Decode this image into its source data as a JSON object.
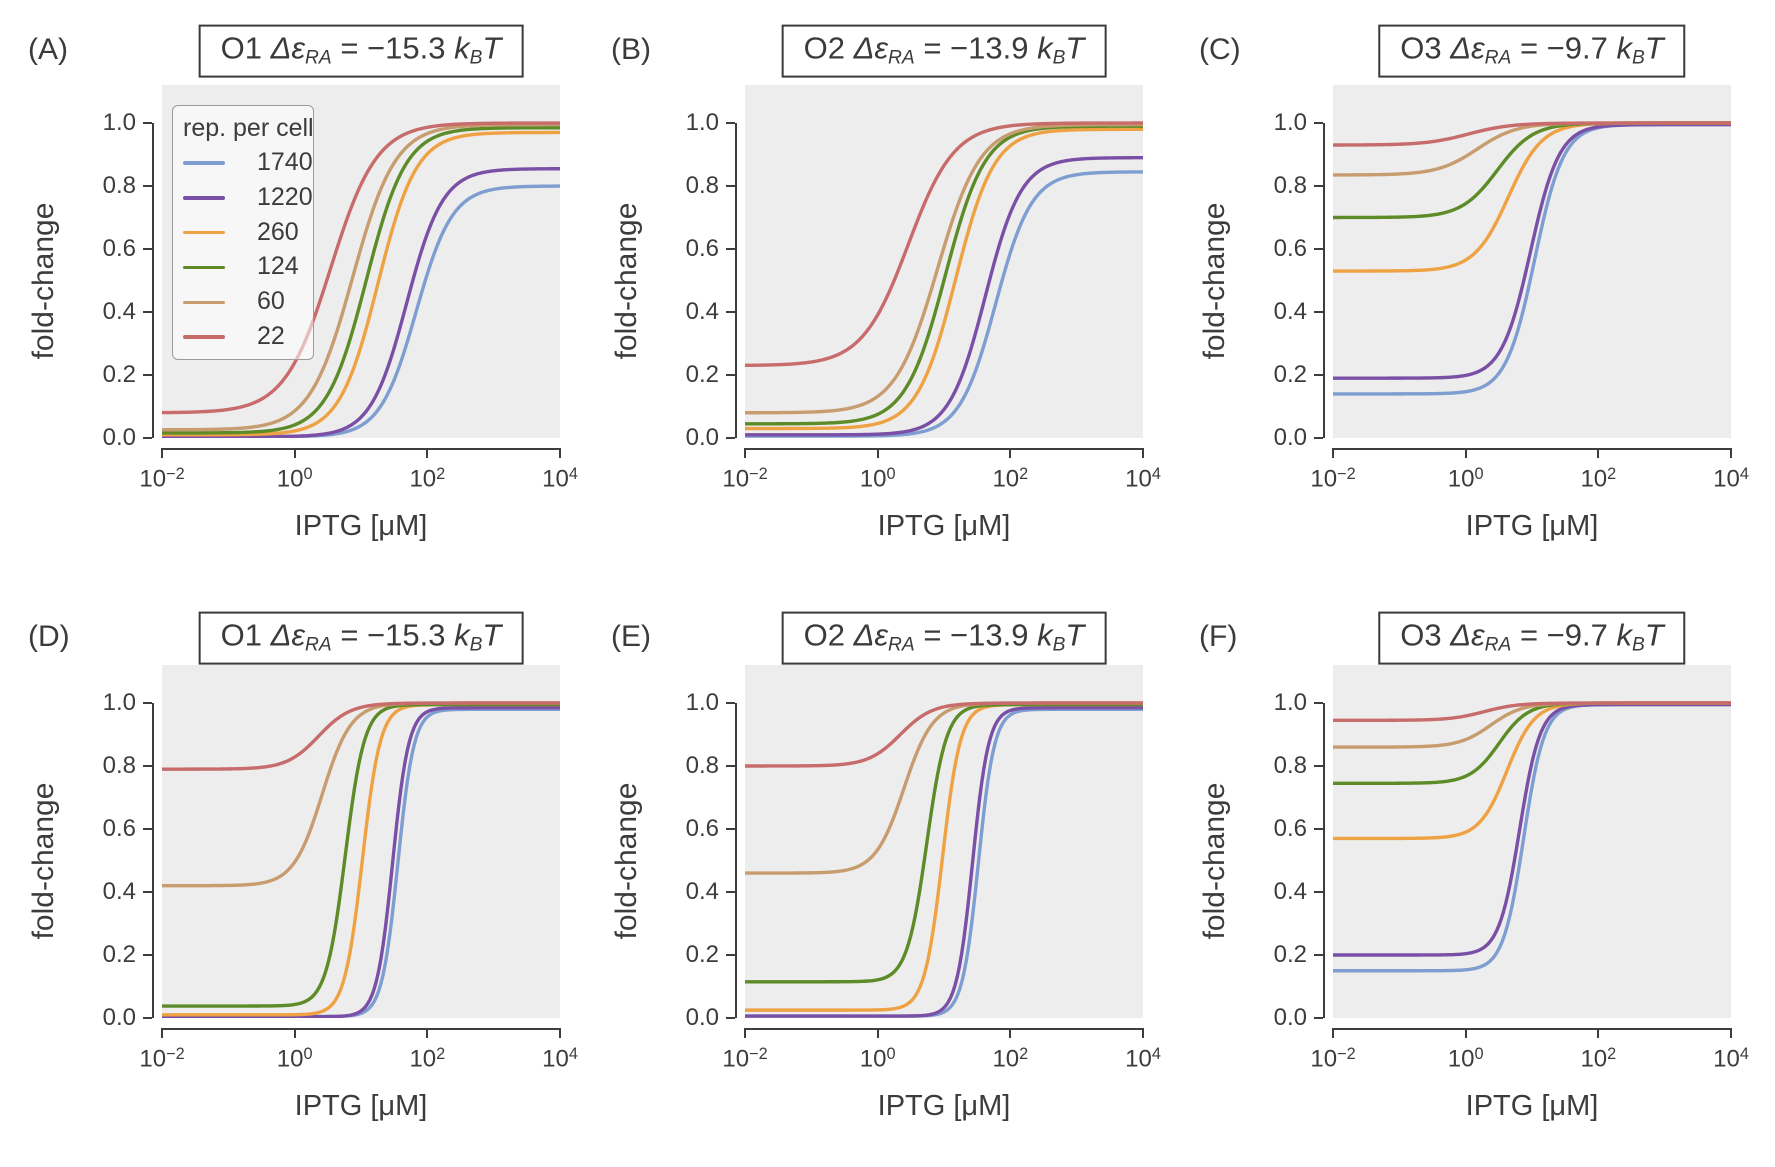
{
  "figure": {
    "xlabel": "IPTG [μM]",
    "ylabel": "fold-change",
    "x_tick_labels": [
      {
        "base": "10",
        "exp": "−2"
      },
      {
        "base": "10",
        "exp": "0"
      },
      {
        "base": "10",
        "exp": "2"
      },
      {
        "base": "10",
        "exp": "4"
      }
    ],
    "y_tick_labels": [
      "0.0",
      "0.2",
      "0.4",
      "0.6",
      "0.8",
      "1.0"
    ],
    "title_format": {
      "symbol": "Δε",
      "symbol_sub": "RA",
      "equals": "=",
      "unit_k": "k",
      "unit_k_sub": "B",
      "unit_T": "T",
      "unit_suffix": "T"
    }
  },
  "legend": {
    "title": "rep. per cell",
    "entries": [
      {
        "label": "1740",
        "color": "blue"
      },
      {
        "label": "1220",
        "color": "purple"
      },
      {
        "label": "260",
        "color": "orange"
      },
      {
        "label": "124",
        "color": "green"
      },
      {
        "label": "60",
        "color": "tan"
      },
      {
        "label": "22",
        "color": "red"
      }
    ]
  },
  "palette": {
    "blue": "#7E9DD1",
    "purple": "#7A4FA6",
    "orange": "#EEA243",
    "green": "#5C8B28",
    "tan": "#C79C6E",
    "red": "#C76B6B",
    "plot_bg": "#EDEDED",
    "spine": "#3D3D3D",
    "text": "#3C3C3C"
  },
  "chart_data": [
    {
      "letter": "(A)",
      "operator": "O1",
      "energy_kbt": "−15.3",
      "type": "line",
      "xscale": "log",
      "xlim_uM": [
        0.01,
        10000
      ],
      "ylim": [
        0,
        1.12
      ],
      "xlabel": "IPTG [μM]",
      "ylabel": "fold-change",
      "grid": false,
      "series": [
        {
          "rep_per_cell": 1740,
          "color": "blue",
          "baseline": 0.004,
          "saturation": 0.8,
          "ec50_uM": 68,
          "hill": 1.6
        },
        {
          "rep_per_cell": 1220,
          "color": "purple",
          "baseline": 0.004,
          "saturation": 0.855,
          "ec50_uM": 49,
          "hill": 1.6
        },
        {
          "rep_per_cell": 260,
          "color": "orange",
          "baseline": 0.01,
          "saturation": 0.97,
          "ec50_uM": 18,
          "hill": 1.5
        },
        {
          "rep_per_cell": 124,
          "color": "green",
          "baseline": 0.016,
          "saturation": 0.985,
          "ec50_uM": 12,
          "hill": 1.45
        },
        {
          "rep_per_cell": 60,
          "color": "tan",
          "baseline": 0.026,
          "saturation": 0.995,
          "ec50_uM": 7.5,
          "hill": 1.35
        },
        {
          "rep_per_cell": 22,
          "color": "red",
          "baseline": 0.08,
          "saturation": 1.0,
          "ec50_uM": 3.5,
          "hill": 1.25
        }
      ]
    },
    {
      "letter": "(B)",
      "operator": "O2",
      "energy_kbt": "−13.9",
      "type": "line",
      "xscale": "log",
      "xlim_uM": [
        0.01,
        10000
      ],
      "ylim": [
        0,
        1.12
      ],
      "xlabel": "IPTG [μM]",
      "ylabel": "fold-change",
      "grid": false,
      "series": [
        {
          "rep_per_cell": 1740,
          "color": "blue",
          "baseline": 0.006,
          "saturation": 0.845,
          "ec50_uM": 60,
          "hill": 1.6
        },
        {
          "rep_per_cell": 1220,
          "color": "purple",
          "baseline": 0.01,
          "saturation": 0.89,
          "ec50_uM": 42,
          "hill": 1.6
        },
        {
          "rep_per_cell": 260,
          "color": "orange",
          "baseline": 0.03,
          "saturation": 0.98,
          "ec50_uM": 15,
          "hill": 1.5
        },
        {
          "rep_per_cell": 124,
          "color": "green",
          "baseline": 0.045,
          "saturation": 0.99,
          "ec50_uM": 10.5,
          "hill": 1.45
        },
        {
          "rep_per_cell": 60,
          "color": "tan",
          "baseline": 0.08,
          "saturation": 0.995,
          "ec50_uM": 8,
          "hill": 1.35
        },
        {
          "rep_per_cell": 22,
          "color": "red",
          "baseline": 0.23,
          "saturation": 1.0,
          "ec50_uM": 2.9,
          "hill": 1.25
        }
      ]
    },
    {
      "letter": "(C)",
      "operator": "O3",
      "energy_kbt": "−9.7",
      "type": "line",
      "xscale": "log",
      "xlim_uM": [
        0.01,
        10000
      ],
      "ylim": [
        0,
        1.12
      ],
      "xlabel": "IPTG [μM]",
      "ylabel": "fold-change",
      "grid": false,
      "series": [
        {
          "rep_per_cell": 1740,
          "color": "blue",
          "baseline": 0.14,
          "saturation": 0.995,
          "ec50_uM": 11,
          "hill": 2.0
        },
        {
          "rep_per_cell": 1220,
          "color": "purple",
          "baseline": 0.19,
          "saturation": 0.995,
          "ec50_uM": 9.5,
          "hill": 2.0
        },
        {
          "rep_per_cell": 260,
          "color": "orange",
          "baseline": 0.53,
          "saturation": 1.0,
          "ec50_uM": 4.4,
          "hill": 1.7
        },
        {
          "rep_per_cell": 124,
          "color": "green",
          "baseline": 0.7,
          "saturation": 1.0,
          "ec50_uM": 3.0,
          "hill": 1.6
        },
        {
          "rep_per_cell": 60,
          "color": "tan",
          "baseline": 0.835,
          "saturation": 1.0,
          "ec50_uM": 1.5,
          "hill": 1.45
        },
        {
          "rep_per_cell": 22,
          "color": "red",
          "baseline": 0.93,
          "saturation": 1.0,
          "ec50_uM": 1.1,
          "hill": 1.35
        }
      ]
    },
    {
      "letter": "(D)",
      "operator": "O1",
      "energy_kbt": "−15.3",
      "type": "line",
      "xscale": "log",
      "xlim_uM": [
        0.01,
        10000
      ],
      "ylim": [
        0,
        1.12
      ],
      "xlabel": "IPTG [μM]",
      "ylabel": "fold-change",
      "grid": false,
      "series": [
        {
          "rep_per_cell": 1740,
          "color": "blue",
          "baseline": 0.005,
          "saturation": 0.98,
          "ec50_uM": 36,
          "hill": 3.6
        },
        {
          "rep_per_cell": 1220,
          "color": "purple",
          "baseline": 0.004,
          "saturation": 0.985,
          "ec50_uM": 30,
          "hill": 3.6
        },
        {
          "rep_per_cell": 260,
          "color": "orange",
          "baseline": 0.01,
          "saturation": 0.995,
          "ec50_uM": 10.5,
          "hill": 3.2
        },
        {
          "rep_per_cell": 124,
          "color": "green",
          "baseline": 0.038,
          "saturation": 0.995,
          "ec50_uM": 5.8,
          "hill": 3.0
        },
        {
          "rep_per_cell": 60,
          "color": "tan",
          "baseline": 0.42,
          "saturation": 1.0,
          "ec50_uM": 2.6,
          "hill": 2.0
        },
        {
          "rep_per_cell": 22,
          "color": "red",
          "baseline": 0.79,
          "saturation": 1.0,
          "ec50_uM": 2.3,
          "hill": 1.8
        }
      ]
    },
    {
      "letter": "(E)",
      "operator": "O2",
      "energy_kbt": "−13.9",
      "type": "line",
      "xscale": "log",
      "xlim_uM": [
        0.01,
        10000
      ],
      "ylim": [
        0,
        1.12
      ],
      "xlabel": "IPTG [μM]",
      "ylabel": "fold-change",
      "grid": false,
      "series": [
        {
          "rep_per_cell": 1740,
          "color": "blue",
          "baseline": 0.006,
          "saturation": 0.98,
          "ec50_uM": 33,
          "hill": 3.6
        },
        {
          "rep_per_cell": 1220,
          "color": "purple",
          "baseline": 0.006,
          "saturation": 0.985,
          "ec50_uM": 27,
          "hill": 3.6
        },
        {
          "rep_per_cell": 260,
          "color": "orange",
          "baseline": 0.025,
          "saturation": 0.995,
          "ec50_uM": 9.5,
          "hill": 3.2
        },
        {
          "rep_per_cell": 124,
          "color": "green",
          "baseline": 0.115,
          "saturation": 0.995,
          "ec50_uM": 5.5,
          "hill": 2.9
        },
        {
          "rep_per_cell": 60,
          "color": "tan",
          "baseline": 0.46,
          "saturation": 1.0,
          "ec50_uM": 2.5,
          "hill": 2.0
        },
        {
          "rep_per_cell": 22,
          "color": "red",
          "baseline": 0.8,
          "saturation": 1.0,
          "ec50_uM": 2.2,
          "hill": 1.8
        }
      ]
    },
    {
      "letter": "(F)",
      "operator": "O3",
      "energy_kbt": "−9.7",
      "type": "line",
      "xscale": "log",
      "xlim_uM": [
        0.01,
        10000
      ],
      "ylim": [
        0,
        1.12
      ],
      "xlabel": "IPTG [μM]",
      "ylabel": "fold-change",
      "grid": false,
      "series": [
        {
          "rep_per_cell": 1740,
          "color": "blue",
          "baseline": 0.15,
          "saturation": 0.995,
          "ec50_uM": 7.5,
          "hill": 2.8
        },
        {
          "rep_per_cell": 1220,
          "color": "purple",
          "baseline": 0.2,
          "saturation": 0.995,
          "ec50_uM": 6.5,
          "hill": 2.8
        },
        {
          "rep_per_cell": 260,
          "color": "orange",
          "baseline": 0.57,
          "saturation": 1.0,
          "ec50_uM": 4.2,
          "hill": 2.1
        },
        {
          "rep_per_cell": 124,
          "color": "green",
          "baseline": 0.745,
          "saturation": 1.0,
          "ec50_uM": 3.2,
          "hill": 2.0
        },
        {
          "rep_per_cell": 60,
          "color": "tan",
          "baseline": 0.86,
          "saturation": 1.0,
          "ec50_uM": 2.4,
          "hill": 1.8
        },
        {
          "rep_per_cell": 22,
          "color": "red",
          "baseline": 0.945,
          "saturation": 1.0,
          "ec50_uM": 1.9,
          "hill": 1.7
        }
      ]
    }
  ]
}
